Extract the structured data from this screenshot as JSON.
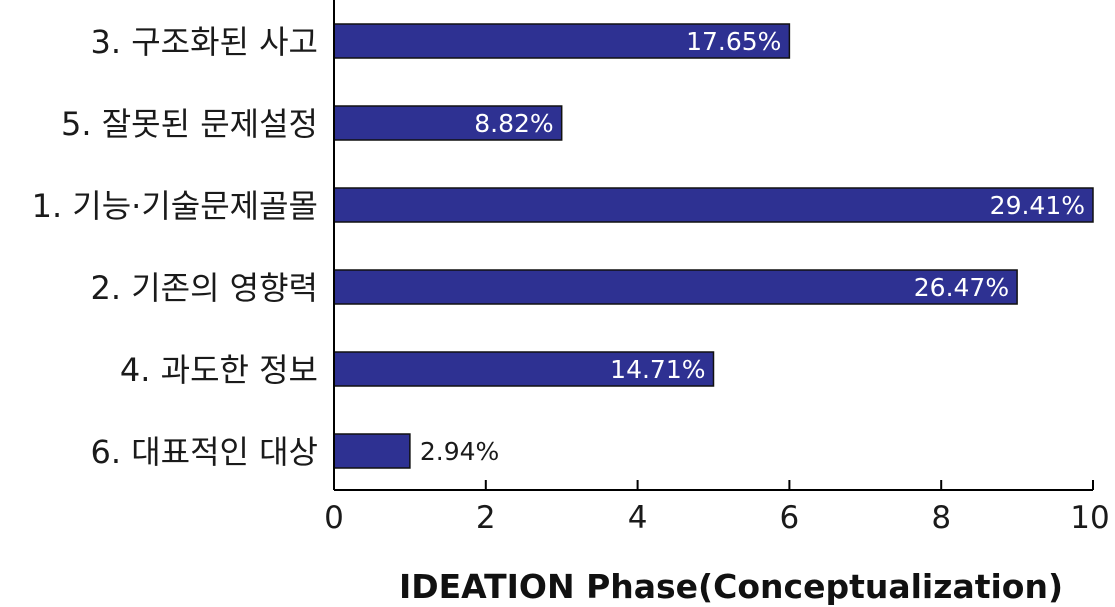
{
  "chart_data": {
    "type": "bar",
    "orientation": "horizontal",
    "categories": [
      "3. 구조화된 사고",
      "5. 잘못된 문제설정",
      "1. 기능·기술문제골몰",
      "2. 기존의 영향력",
      "4. 과도한 정보",
      "6. 대표적인 대상"
    ],
    "values": [
      6,
      3,
      10,
      9,
      5,
      1
    ],
    "data_labels": [
      "17.65%",
      "8.82%",
      "29.41%",
      "26.47%",
      "14.71%",
      "2.94%"
    ],
    "xlabel": "IDEATION Phase(Conceptualization)",
    "ylabel": "",
    "xlim": [
      0,
      10
    ],
    "xticks": [
      "0",
      "2",
      "4",
      "6",
      "8",
      "10"
    ],
    "grid": false,
    "colors": {
      "bar_fill": "#2e3192",
      "bar_stroke": "#111111",
      "label_inside": "#ffffff",
      "label_outside": "#1a1a1a",
      "axis": "#000000"
    }
  }
}
